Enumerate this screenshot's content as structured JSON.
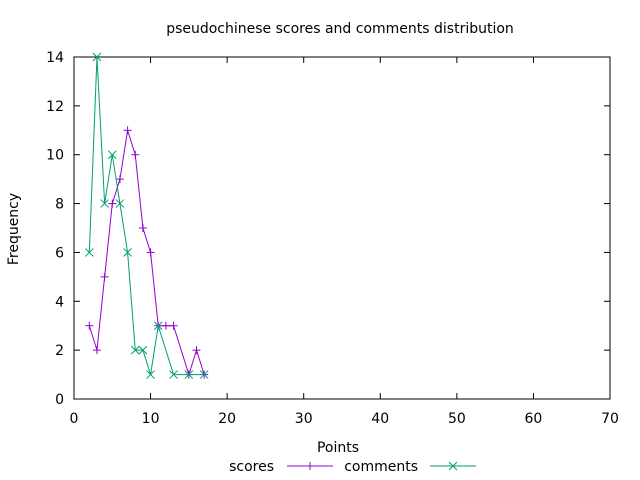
{
  "chart_data": {
    "type": "line",
    "title": "pseudochinese scores and comments distribution",
    "xlabel": "Points",
    "ylabel": "Frequency",
    "xlim": [
      0,
      70
    ],
    "ylim": [
      0,
      14
    ],
    "x_ticks": [
      0,
      10,
      20,
      30,
      40,
      50,
      60,
      70
    ],
    "y_ticks": [
      0,
      2,
      4,
      6,
      8,
      10,
      12,
      14
    ],
    "grid": false,
    "legend_position": "bottom",
    "series": [
      {
        "name": "scores",
        "color": "#9400D3",
        "marker": "plus",
        "points": [
          [
            2,
            3
          ],
          [
            3,
            2
          ],
          [
            4,
            5
          ],
          [
            5,
            8
          ],
          [
            6,
            9
          ],
          [
            7,
            11
          ],
          [
            8,
            10
          ],
          [
            9,
            7
          ],
          [
            10,
            6
          ],
          [
            11,
            3
          ],
          [
            12,
            3
          ],
          [
            13,
            3
          ],
          [
            15,
            1
          ],
          [
            16,
            2
          ],
          [
            17,
            1
          ]
        ]
      },
      {
        "name": "comments",
        "color": "#009E73",
        "marker": "cross",
        "points": [
          [
            2,
            6
          ],
          [
            3,
            14
          ],
          [
            4,
            8
          ],
          [
            5,
            10
          ],
          [
            6,
            8
          ],
          [
            7,
            6
          ],
          [
            8,
            2
          ],
          [
            9,
            2
          ],
          [
            10,
            1
          ],
          [
            11,
            3
          ],
          [
            13,
            1
          ],
          [
            15,
            1
          ],
          [
            17,
            1
          ]
        ]
      }
    ]
  }
}
